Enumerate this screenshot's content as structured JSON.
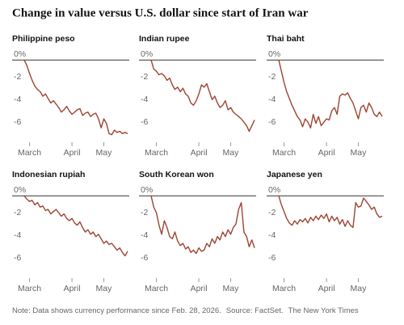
{
  "title": "Change in value versus U.S. dollar since start of Iran war",
  "note": "Note: Data shows currency performance since Feb. 28, 2026.",
  "source": "Source: FactSet.",
  "credit": "The New York Times",
  "chart_data": [
    {
      "type": "line",
      "title": "Philippine peso",
      "color": "#9c4430",
      "xlim": [
        0,
        39
      ],
      "xticks": [
        {
          "value": 2,
          "label": "March"
        },
        {
          "value": 18,
          "label": "April"
        },
        {
          "value": 30,
          "label": "May"
        }
      ],
      "ylim": [
        -7.2,
        0.3
      ],
      "yticks": [
        {
          "value": 0,
          "label": "0%"
        },
        -2,
        -4,
        -6
      ],
      "values": [
        0,
        -0.5,
        -1.2,
        -1.8,
        -2.3,
        -2.6,
        -2.8,
        -3.2,
        -3.0,
        -3.4,
        -3.8,
        -3.6,
        -3.9,
        -4.2,
        -4.6,
        -4.4,
        -4.1,
        -4.5,
        -4.8,
        -4.6,
        -4.4,
        -4.3,
        -4.9,
        -4.7,
        -4.6,
        -5.0,
        -4.8,
        -4.7,
        -5.2,
        -6.0,
        -5.2,
        -5.6,
        -6.5,
        -6.6,
        -6.2,
        -6.4,
        -6.3,
        -6.5,
        -6.4,
        -6.5
      ]
    },
    {
      "type": "line",
      "title": "Indian rupee",
      "color": "#9c4430",
      "xlim": [
        0,
        39
      ],
      "xticks": [
        {
          "value": 2,
          "label": "March"
        },
        {
          "value": 18,
          "label": "April"
        },
        {
          "value": 30,
          "label": "May"
        }
      ],
      "ylim": [
        -7.2,
        0.3
      ],
      "yticks": [
        {
          "value": 0,
          "label": "0%"
        },
        -2,
        -4,
        -6
      ],
      "values": [
        0,
        -0.8,
        -1.0,
        -1.3,
        -1.2,
        -1.4,
        -1.8,
        -1.6,
        -2.2,
        -2.6,
        -2.4,
        -2.8,
        -2.5,
        -3.0,
        -3.2,
        -3.8,
        -4.0,
        -3.6,
        -3.0,
        -2.2,
        -2.4,
        -2.1,
        -2.8,
        -3.5,
        -3.2,
        -3.8,
        -4.2,
        -4.0,
        -3.6,
        -4.4,
        -4.2,
        -4.6,
        -4.8,
        -5.0,
        -5.2,
        -5.5,
        -5.8,
        -6.3,
        -5.8,
        -5.3
      ]
    },
    {
      "type": "line",
      "title": "Thai baht",
      "color": "#9c4430",
      "xlim": [
        0,
        39
      ],
      "xticks": [
        {
          "value": 2,
          "label": "March"
        },
        {
          "value": 18,
          "label": "April"
        },
        {
          "value": 30,
          "label": "May"
        }
      ],
      "ylim": [
        -7.2,
        0.3
      ],
      "yticks": [
        {
          "value": 0,
          "label": "0%"
        },
        -2,
        -4,
        -6
      ],
      "values": [
        0,
        -1.0,
        -2.0,
        -2.8,
        -3.4,
        -4.0,
        -4.5,
        -5.0,
        -5.3,
        -5.9,
        -5.2,
        -5.5,
        -6.0,
        -4.8,
        -5.6,
        -5.0,
        -5.8,
        -5.5,
        -5.2,
        -5.3,
        -4.5,
        -4.2,
        -4.8,
        -3.2,
        -3.0,
        -3.1,
        -2.9,
        -3.4,
        -3.8,
        -4.5,
        -5.2,
        -4.2,
        -4.0,
        -4.6,
        -3.8,
        -4.2,
        -4.8,
        -5.0,
        -4.6,
        -5.0
      ]
    },
    {
      "type": "line",
      "title": "Indonesian rupiah",
      "color": "#9c4430",
      "xlim": [
        0,
        39
      ],
      "xticks": [
        {
          "value": 2,
          "label": "March"
        },
        {
          "value": 18,
          "label": "April"
        },
        {
          "value": 30,
          "label": "May"
        }
      ],
      "ylim": [
        -7.2,
        0.3
      ],
      "yticks": [
        {
          "value": 0,
          "label": "0%"
        },
        -2,
        -4,
        -6
      ],
      "values": [
        0,
        -0.3,
        -0.5,
        -0.4,
        -0.8,
        -0.6,
        -1.0,
        -0.9,
        -1.3,
        -1.2,
        -1.6,
        -1.4,
        -1.2,
        -1.5,
        -1.8,
        -1.6,
        -2.0,
        -2.2,
        -2.0,
        -2.4,
        -2.6,
        -2.3,
        -2.8,
        -3.2,
        -3.0,
        -3.4,
        -3.2,
        -3.6,
        -3.4,
        -3.8,
        -4.2,
        -4.0,
        -4.3,
        -4.2,
        -4.5,
        -4.8,
        -4.6,
        -5.0,
        -5.3,
        -4.9
      ]
    },
    {
      "type": "line",
      "title": "South Korean won",
      "color": "#9c4430",
      "xlim": [
        0,
        39
      ],
      "xticks": [
        {
          "value": 2,
          "label": "March"
        },
        {
          "value": 18,
          "label": "April"
        },
        {
          "value": 30,
          "label": "May"
        }
      ],
      "ylim": [
        -7.2,
        0.3
      ],
      "yticks": [
        {
          "value": 0,
          "label": "0%"
        },
        -2,
        -4,
        -6
      ],
      "values": [
        0,
        -1.0,
        -1.5,
        -2.6,
        -3.4,
        -2.2,
        -2.8,
        -3.6,
        -3.8,
        -3.2,
        -4.0,
        -4.4,
        -4.2,
        -4.7,
        -4.5,
        -5.0,
        -4.8,
        -5.1,
        -4.6,
        -4.9,
        -4.8,
        -4.2,
        -4.5,
        -3.8,
        -4.2,
        -3.6,
        -3.9,
        -3.2,
        -3.6,
        -3.0,
        -3.4,
        -2.8,
        -2.5,
        -1.2,
        -0.6,
        -3.2,
        -3.6,
        -4.5,
        -3.9,
        -4.6
      ]
    },
    {
      "type": "line",
      "title": "Japanese yen",
      "color": "#9c4430",
      "xlim": [
        0,
        39
      ],
      "xticks": [
        {
          "value": 2,
          "label": "March"
        },
        {
          "value": 18,
          "label": "April"
        },
        {
          "value": 30,
          "label": "May"
        }
      ],
      "ylim": [
        -7.2,
        0.3
      ],
      "yticks": [
        {
          "value": 0,
          "label": "0%"
        },
        -2,
        -4,
        -6
      ],
      "values": [
        0,
        -0.8,
        -1.4,
        -2.0,
        -2.4,
        -2.6,
        -2.2,
        -2.5,
        -2.1,
        -2.3,
        -2.0,
        -2.4,
        -1.9,
        -2.2,
        -1.8,
        -2.1,
        -1.7,
        -2.0,
        -1.6,
        -2.3,
        -1.8,
        -2.2,
        -1.9,
        -2.5,
        -2.1,
        -2.7,
        -2.2,
        -2.6,
        -2.8,
        -0.6,
        -1.0,
        -0.9,
        -0.2,
        -0.5,
        -0.8,
        -1.2,
        -1.0,
        -1.6,
        -1.9,
        -1.8
      ]
    }
  ]
}
